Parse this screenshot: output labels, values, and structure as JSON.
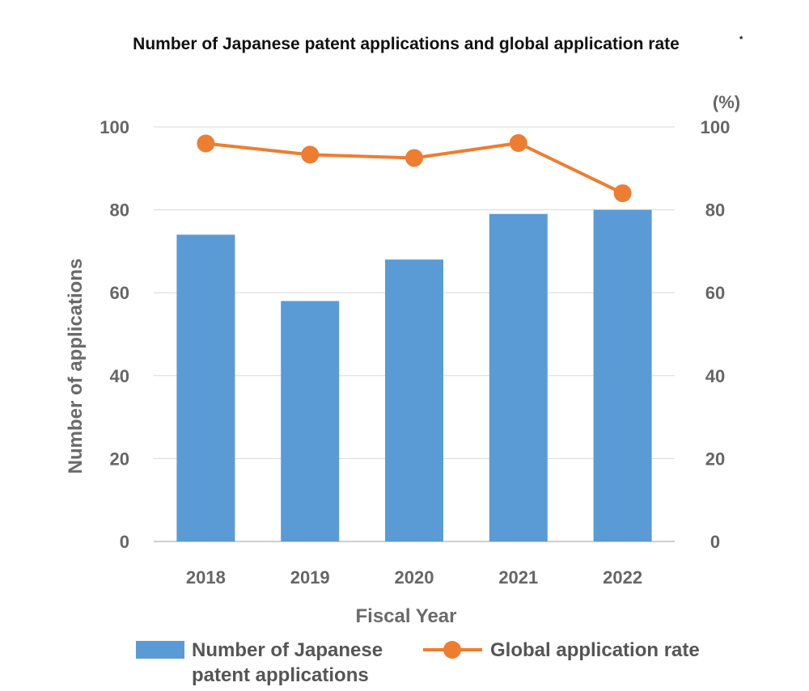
{
  "chart_data": {
    "type": "bar",
    "title": "Number of Japanese patent applications and global application rate",
    "title_mark": "*",
    "categories": [
      "2018",
      "2019",
      "2020",
      "2021",
      "2022"
    ],
    "xlabel": "Fiscal Year",
    "ylabel": "Number of applications",
    "ylim": [
      0,
      100
    ],
    "y_ticks": [
      "0",
      "20",
      "40",
      "60",
      "80",
      "100"
    ],
    "y2label": "(%)",
    "y2lim": [
      0,
      100
    ],
    "y2_ticks": [
      "0",
      "20",
      "40",
      "60",
      "80",
      "100"
    ],
    "grid": true,
    "legend_position": "bottom",
    "series": [
      {
        "name": "Number of Japanese patent applications",
        "legend_lines": [
          "Number of Japanese",
          "patent applications"
        ],
        "type": "bar",
        "axis": "left",
        "color": "#5b9bd5",
        "values": [
          74,
          58,
          68,
          79,
          80
        ]
      },
      {
        "name": "Global application rate",
        "type": "line",
        "axis": "right",
        "color": "#ed7d31",
        "values": [
          96,
          93.3,
          92.5,
          96.1,
          84
        ]
      }
    ]
  }
}
